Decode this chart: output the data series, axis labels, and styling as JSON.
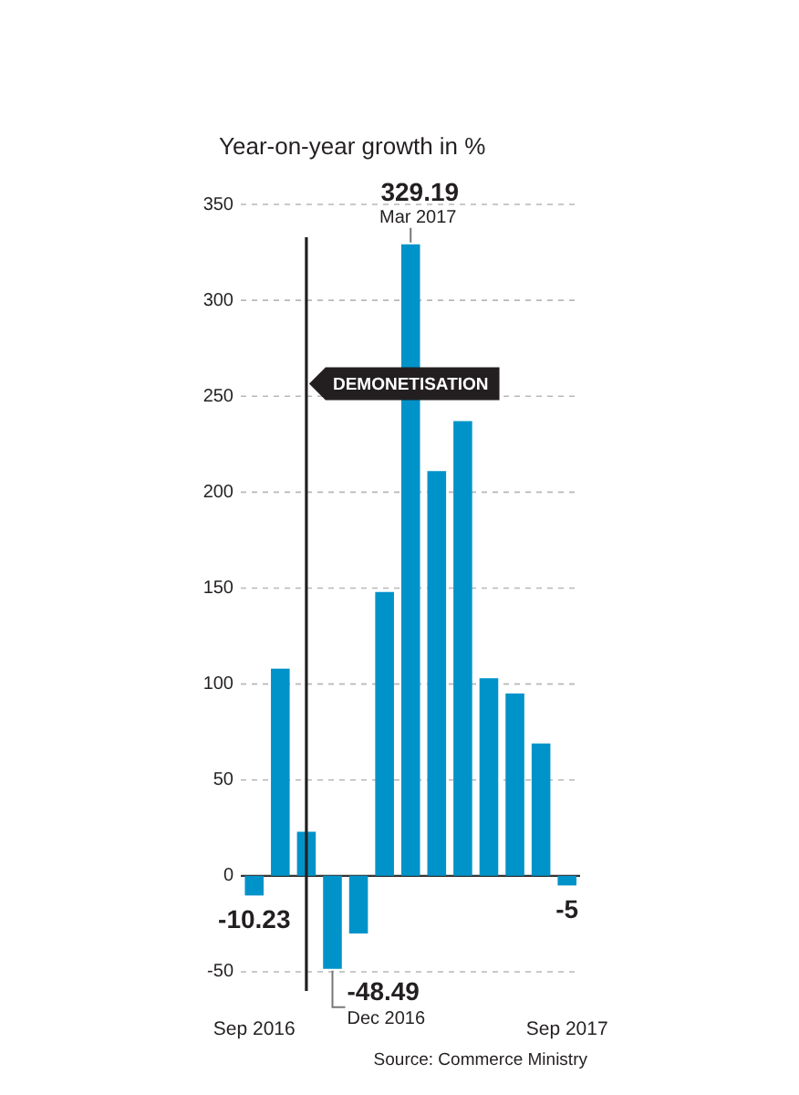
{
  "chart_data": {
    "type": "bar",
    "title": "Year-on-year growth in %",
    "x": [
      "2016-09",
      "2016-10",
      "2016-11",
      "2016-12",
      "2017-01",
      "2017-02",
      "2017-03",
      "2017-04",
      "2017-05",
      "2017-06",
      "2017-07",
      "2017-08",
      "2017-09"
    ],
    "values": [
      -10.23,
      108,
      23,
      -48.49,
      -30,
      148,
      329.19,
      211,
      237,
      103,
      95,
      69,
      -5
    ],
    "value_labels": [
      "-10.23",
      null,
      null,
      "-48.49",
      null,
      null,
      "329.19",
      null,
      null,
      null,
      null,
      null,
      "-5"
    ],
    "color": "#0093c9",
    "xlim": [
      "2016-08-16",
      "2017-09-16"
    ],
    "xticks": [
      {
        "value": "2016-09",
        "label": "Sep 2016"
      },
      {
        "value": "2017-09",
        "label": "Sep 2017"
      }
    ],
    "ylim": [
      -60,
      350
    ],
    "yticks": [
      -50,
      0,
      50,
      100,
      150,
      200,
      250,
      300,
      350
    ],
    "grid": "y",
    "legend": false,
    "ref_lines": [
      {
        "axis": "x",
        "value": "2016-11",
        "label": "DEMONETISATION",
        "color": "#231f20"
      }
    ],
    "annotations": [
      {
        "text": "Dec 2016",
        "x": "2016-12",
        "y": -48.49
      },
      {
        "text": "Mar 2017",
        "x": "2017-03",
        "y": 329.19
      },
      "Source: Commerce Ministry"
    ]
  }
}
